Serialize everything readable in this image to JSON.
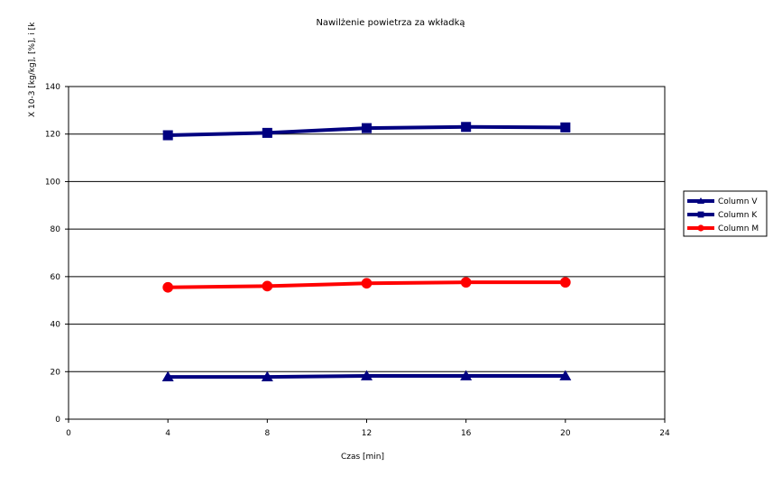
{
  "chart_data": {
    "type": "line",
    "title": "Nawilżenie powietrza za wkładką",
    "xlabel": "Czas [min]",
    "ylabel": "X   10-3 [kg/kg],    [%],  i [k",
    "xlim": [
      0,
      24
    ],
    "ylim": [
      0,
      140
    ],
    "xticks": [
      0,
      4,
      8,
      12,
      16,
      20,
      24
    ],
    "yticks": [
      0,
      20,
      40,
      60,
      80,
      100,
      120,
      140
    ],
    "grid": "horizontal",
    "legend_position": "right",
    "x": [
      4,
      8,
      12,
      16,
      20
    ],
    "series": [
      {
        "name": "Column V",
        "values": [
          17.8,
          17.8,
          18.2,
          18.2,
          18.2
        ],
        "color": "#000080",
        "marker": "triangle"
      },
      {
        "name": "Column K",
        "values": [
          119.5,
          120.5,
          122.5,
          123,
          122.8
        ],
        "color": "#000080",
        "marker": "square"
      },
      {
        "name": "Column M",
        "values": [
          55.5,
          56,
          57.2,
          57.6,
          57.6
        ],
        "color": "#ff0000",
        "marker": "circle"
      }
    ]
  }
}
